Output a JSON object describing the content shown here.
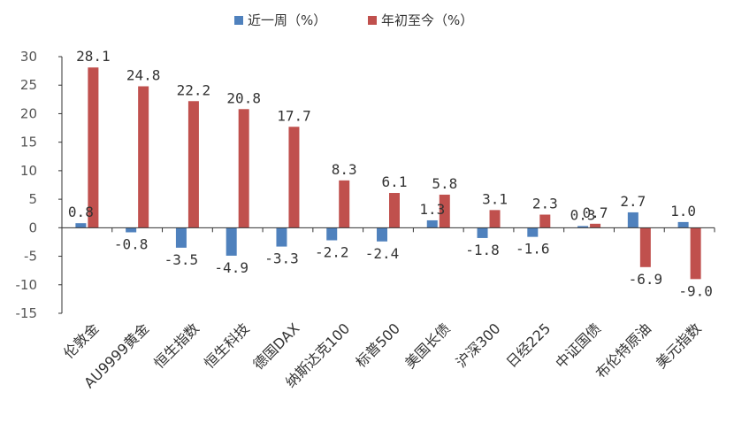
{
  "chart_data": {
    "type": "bar",
    "title": "",
    "xlabel": "",
    "ylabel": "",
    "ylim": [
      -15,
      30
    ],
    "yticks": [
      30,
      25,
      20,
      15,
      10,
      5,
      0,
      -5,
      -10,
      -15
    ],
    "grid": false,
    "legend_position": "top",
    "categories": [
      "伦敦金",
      "AU9999黄金",
      "恒生指数",
      "恒生科技",
      "德国DAX",
      "纳斯达克100",
      "标普500",
      "美国长债",
      "沪深300",
      "日经225",
      "中证国债",
      "布伦特原油",
      "美元指数"
    ],
    "series": [
      {
        "name": "近一周（%）",
        "color": "#4F81BD",
        "values": [
          0.8,
          -0.8,
          -3.5,
          -4.9,
          -3.3,
          -2.2,
          -2.4,
          1.3,
          -1.8,
          -1.6,
          0.3,
          2.7,
          1.0
        ],
        "labels": [
          "0.8",
          "-0.8",
          "-3.5",
          "-4.9",
          "-3.3",
          "-2.2",
          "-2.4",
          "1.3",
          "-1.8",
          "-1.6",
          "0.3",
          "2.7",
          "1.0"
        ]
      },
      {
        "name": "年初至今（%）",
        "color": "#C0504D",
        "values": [
          28.1,
          24.8,
          22.2,
          20.8,
          17.7,
          8.3,
          6.1,
          5.8,
          3.1,
          2.3,
          0.7,
          -6.9,
          -9.0
        ],
        "labels": [
          "28.1",
          "24.8",
          "22.2",
          "20.8",
          "17.7",
          "8.3",
          "6.1",
          "5.8",
          "3.1",
          "2.3",
          "0.7",
          "-6.9",
          "-9.0"
        ]
      }
    ]
  }
}
